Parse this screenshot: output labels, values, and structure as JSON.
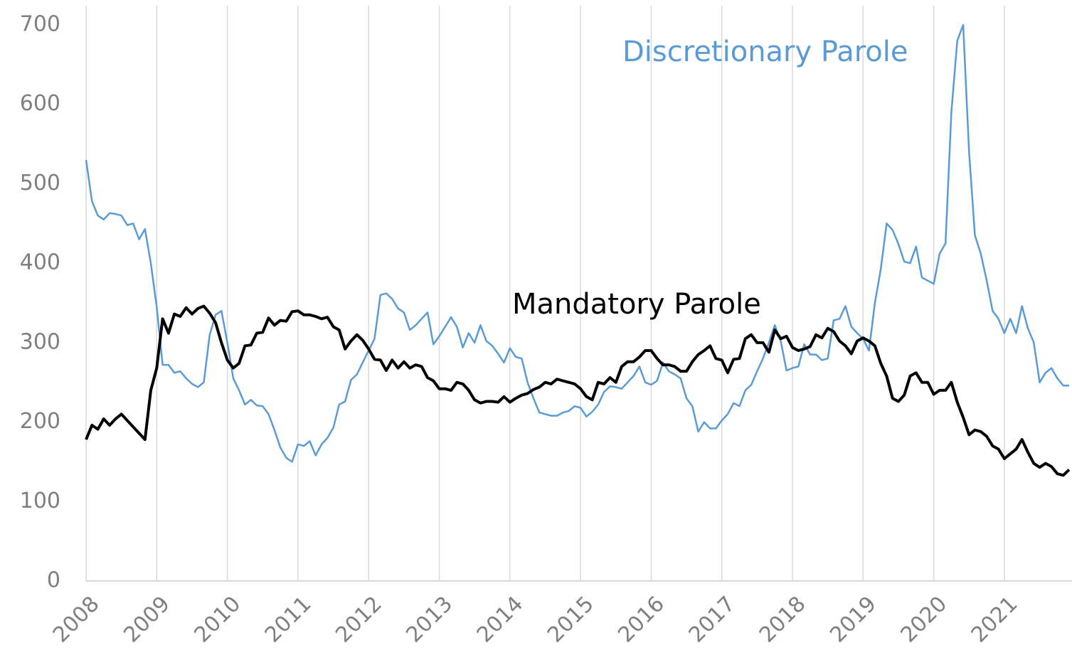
{
  "chart_data": {
    "type": "line",
    "categories": [
      "2008",
      null,
      null,
      null,
      null,
      null,
      null,
      null,
      null,
      null,
      null,
      null,
      "2009",
      null,
      null,
      null,
      null,
      null,
      null,
      null,
      null,
      null,
      null,
      null,
      "2010",
      null,
      null,
      null,
      null,
      null,
      null,
      null,
      null,
      null,
      null,
      null,
      "2011",
      null,
      null,
      null,
      null,
      null,
      null,
      null,
      null,
      null,
      null,
      null,
      "2012",
      null,
      null,
      null,
      null,
      null,
      null,
      null,
      null,
      null,
      null,
      null,
      "2013",
      null,
      null,
      null,
      null,
      null,
      null,
      null,
      null,
      null,
      null,
      null,
      "2014",
      null,
      null,
      null,
      null,
      null,
      null,
      null,
      null,
      null,
      null,
      null,
      "2015",
      null,
      null,
      null,
      null,
      null,
      null,
      null,
      null,
      null,
      null,
      null,
      "2016",
      null,
      null,
      null,
      null,
      null,
      null,
      null,
      null,
      null,
      null,
      null,
      "2017",
      null,
      null,
      null,
      null,
      null,
      null,
      null,
      null,
      null,
      null,
      null,
      "2018",
      null,
      null,
      null,
      null,
      null,
      null,
      null,
      null,
      null,
      null,
      null,
      "2019",
      null,
      null,
      null,
      null,
      null,
      null,
      null,
      null,
      null,
      null,
      null,
      "2020",
      null,
      null,
      null,
      null,
      null,
      null,
      null,
      null,
      null,
      null,
      null,
      "2021",
      null,
      null,
      null,
      null,
      null,
      null,
      null,
      null,
      null,
      null,
      null
    ],
    "series": [
      {
        "name": "Discretionary Parole",
        "color": "#5b9bd5",
        "width": 2.5,
        "values": [
          530,
          478,
          460,
          455,
          463,
          462,
          460,
          448,
          450,
          430,
          443,
          400,
          345,
          272,
          272,
          262,
          264,
          255,
          248,
          244,
          250,
          310,
          335,
          340,
          300,
          255,
          240,
          222,
          228,
          221,
          220,
          210,
          190,
          168,
          155,
          150,
          172,
          170,
          176,
          158,
          172,
          180,
          193,
          222,
          226,
          253,
          260,
          275,
          290,
          305,
          360,
          362,
          355,
          343,
          338,
          316,
          322,
          330,
          338,
          298,
          308,
          320,
          332,
          320,
          294,
          312,
          300,
          322,
          302,
          296,
          286,
          275,
          293,
          282,
          280,
          250,
          230,
          212,
          210,
          208,
          208,
          212,
          214,
          220,
          218,
          207,
          213,
          222,
          238,
          245,
          244,
          242,
          250,
          258,
          270,
          250,
          247,
          252,
          275,
          264,
          260,
          255,
          230,
          220,
          188,
          200,
          192,
          192,
          202,
          210,
          224,
          220,
          240,
          247,
          264,
          280,
          300,
          322,
          302,
          265,
          268,
          270,
          298,
          285,
          285,
          278,
          280,
          328,
          330,
          346,
          320,
          312,
          305,
          290,
          350,
          392,
          450,
          442,
          424,
          402,
          400,
          421,
          382,
          378,
          374,
          412,
          425,
          590,
          680,
          700,
          540,
          435,
          412,
          378,
          340,
          330,
          312,
          330,
          312,
          346,
          318,
          300,
          250,
          262,
          268,
          255,
          246,
          246
        ]
      },
      {
        "name": "Mandatory Parole",
        "color": "#000000",
        "width": 4,
        "values": [
          178,
          196,
          191,
          204,
          196,
          204,
          210,
          202,
          194,
          186,
          178,
          240,
          268,
          330,
          312,
          336,
          333,
          344,
          336,
          343,
          346,
          337,
          325,
          300,
          278,
          268,
          274,
          296,
          297,
          312,
          313,
          331,
          322,
          328,
          327,
          339,
          340,
          335,
          335,
          333,
          330,
          332,
          320,
          316,
          292,
          302,
          310,
          303,
          292,
          279,
          278,
          265,
          278,
          268,
          276,
          268,
          272,
          270,
          256,
          252,
          242,
          242,
          240,
          250,
          248,
          240,
          228,
          224,
          226,
          226,
          225,
          232,
          225,
          230,
          234,
          236,
          241,
          244,
          250,
          248,
          254,
          252,
          250,
          248,
          242,
          232,
          228,
          250,
          248,
          256,
          250,
          270,
          276,
          276,
          282,
          290,
          290,
          280,
          272,
          272,
          270,
          264,
          264,
          276,
          285,
          290,
          296,
          280,
          278,
          262,
          279,
          280,
          305,
          310,
          300,
          300,
          288,
          316,
          305,
          308,
          294,
          290,
          292,
          295,
          310,
          306,
          318,
          314,
          302,
          296,
          286,
          302,
          306,
          302,
          296,
          274,
          258,
          230,
          226,
          234,
          258,
          262,
          250,
          250,
          235,
          240,
          240,
          250,
          225,
          206,
          184,
          190,
          188,
          182,
          170,
          166,
          154,
          160,
          166,
          178,
          162,
          148,
          143,
          148,
          144,
          135,
          133,
          140
        ]
      }
    ],
    "ylim": [
      0,
      700
    ],
    "yticks": [
      0,
      100,
      200,
      300,
      400,
      500,
      600,
      700
    ],
    "grid": true
  }
}
